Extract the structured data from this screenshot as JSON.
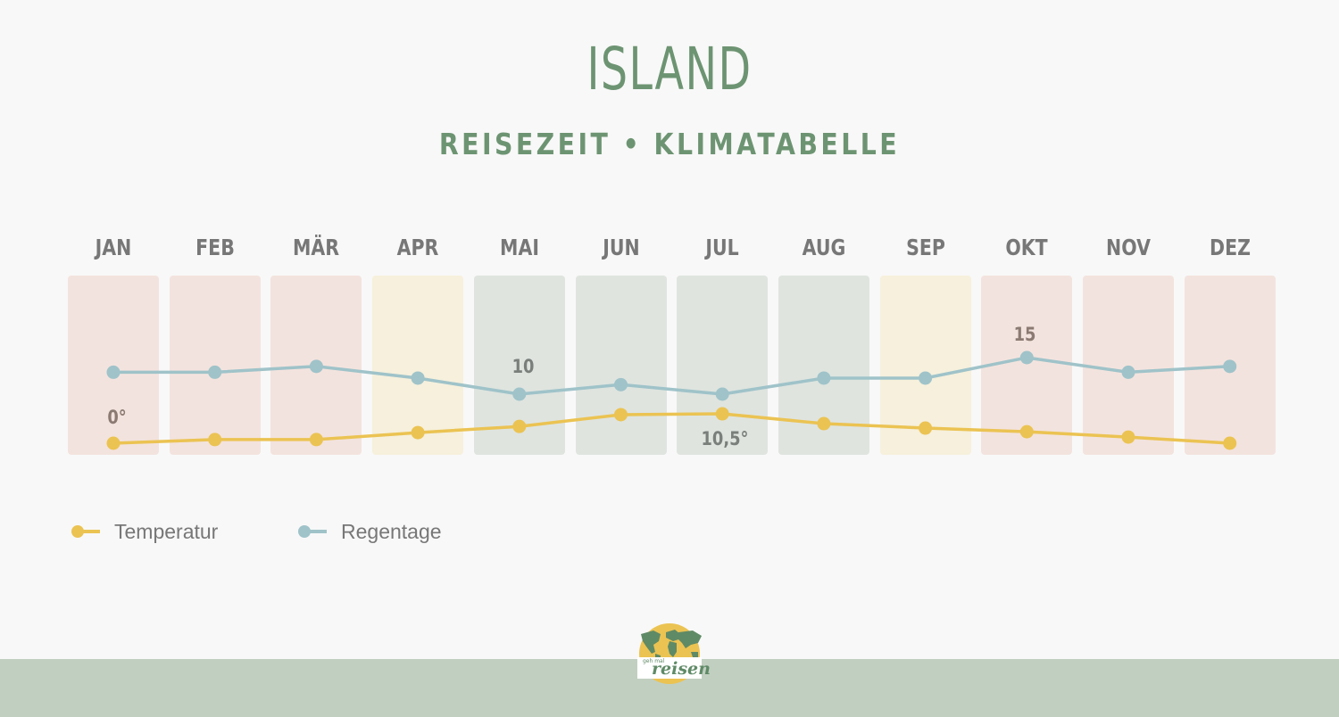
{
  "header": {
    "title": "ISLAND",
    "subtitle": "REISEZEIT • KLIMATABELLE"
  },
  "colors": {
    "title": "#6d9472",
    "month_label": "#777777",
    "bar_bad": "#f3e3de",
    "bar_ok": "#f6f0dc",
    "bar_good": "#dfe4df",
    "temperature_line": "#ebc352",
    "rain_line": "#9fc3c9",
    "footer": "#c1cfc1",
    "background": "#f8f8f8"
  },
  "months": [
    {
      "label": "JAN",
      "rating": "bad"
    },
    {
      "label": "FEB",
      "rating": "bad"
    },
    {
      "label": "MÄR",
      "rating": "bad"
    },
    {
      "label": "APR",
      "rating": "ok"
    },
    {
      "label": "MAI",
      "rating": "good"
    },
    {
      "label": "JUN",
      "rating": "good"
    },
    {
      "label": "JUL",
      "rating": "good"
    },
    {
      "label": "AUG",
      "rating": "good"
    },
    {
      "label": "SEP",
      "rating": "ok"
    },
    {
      "label": "OKT",
      "rating": "bad"
    },
    {
      "label": "NOV",
      "rating": "bad"
    },
    {
      "label": "DEZ",
      "rating": "bad"
    }
  ],
  "annotations": {
    "temp_min": "0°",
    "temp_max": "10,5°",
    "rain_min": "10",
    "rain_max": "15"
  },
  "legend": {
    "temperature": "Temperatur",
    "rain": "Regentage"
  },
  "logo": {
    "small_text": "geh mal",
    "main_text": "reisen"
  },
  "chart_data": {
    "type": "line",
    "title": "ISLAND",
    "subtitle": "REISEZEIT • KLIMATABELLE",
    "categories": [
      "JAN",
      "FEB",
      "MÄR",
      "APR",
      "MAI",
      "JUN",
      "JUL",
      "AUG",
      "SEP",
      "OKT",
      "NOV",
      "DEZ"
    ],
    "series": [
      {
        "name": "Temperatur",
        "unit": "°C",
        "color": "#ebc352",
        "values": [
          0,
          1.3,
          1.3,
          3.8,
          6,
          10.2,
          10.5,
          7,
          5.4,
          4.1,
          2.2,
          0
        ]
      },
      {
        "name": "Regentage",
        "unit": "Tage",
        "color": "#9fc3c9",
        "values": [
          13,
          13,
          13.8,
          12.2,
          10,
          11.3,
          10,
          12.2,
          12.2,
          15,
          13,
          13.8
        ]
      }
    ],
    "annotations": [
      {
        "series": "Temperatur",
        "month": "JAN",
        "text": "0°"
      },
      {
        "series": "Temperatur",
        "month": "JUL",
        "text": "10,5°"
      },
      {
        "series": "Regentage",
        "month": "MAI",
        "text": "10"
      },
      {
        "series": "Regentage",
        "month": "OKT",
        "text": "15"
      }
    ],
    "background_bands": [
      "bad",
      "bad",
      "bad",
      "ok",
      "good",
      "good",
      "good",
      "good",
      "ok",
      "bad",
      "bad",
      "bad"
    ],
    "xlabel": "",
    "ylabel": "",
    "grid": false,
    "legend_position": "bottom-left"
  }
}
